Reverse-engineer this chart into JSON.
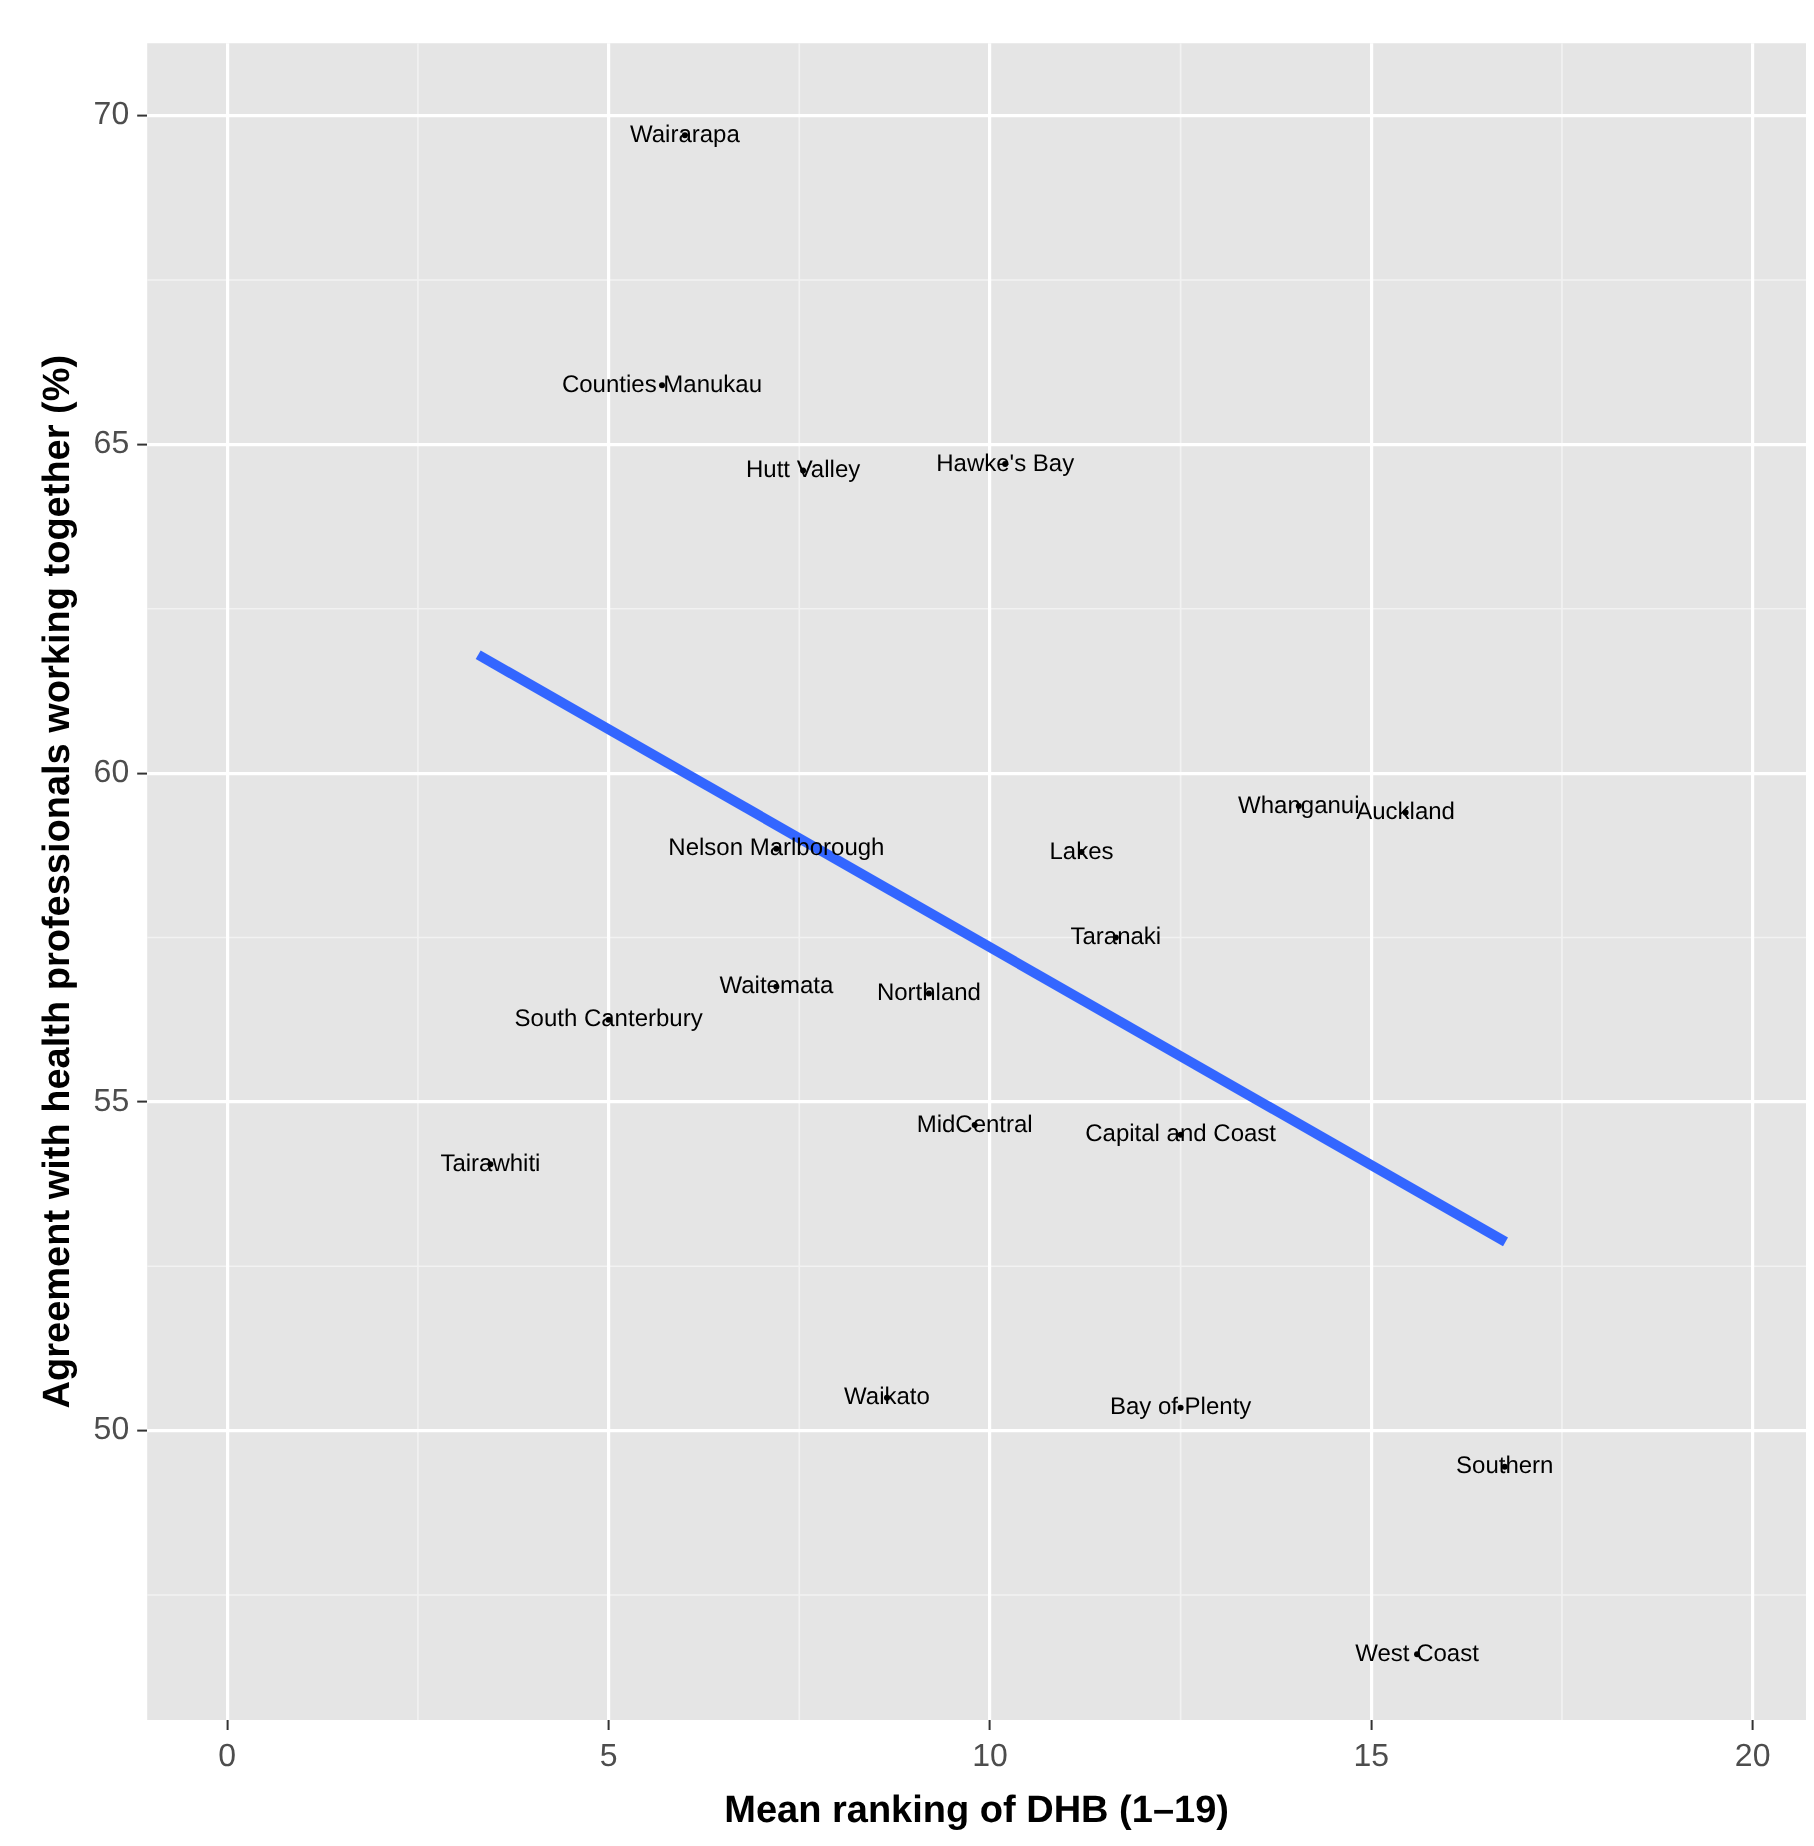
{
  "chart_data": {
    "type": "scatter",
    "xlabel": "Mean ranking of DHB (1–19)",
    "ylabel": "Agreement with health professionals working together (%)",
    "xlim": [
      -1.05,
      20.7
    ],
    "ylim": [
      45.6,
      71.1
    ],
    "xticks": [
      0,
      5,
      10,
      15,
      20
    ],
    "yticks": [
      50,
      55,
      60,
      65,
      70
    ],
    "grid": true,
    "legend": false,
    "line_style": "solid",
    "series": [
      {
        "type": "line",
        "color": "#3366ff",
        "x": [
          3.29,
          16.76
        ],
        "values": [
          61.8,
          52.87
        ]
      },
      {
        "color": "#000000",
        "x": [
          6.0,
          5.7,
          7.55,
          10.2,
          14.05,
          15.45,
          7.2,
          11.2,
          11.65,
          7.2,
          9.2,
          5.0,
          9.8,
          12.5,
          3.45,
          8.65,
          12.5,
          16.75,
          15.6
        ],
        "values": [
          69.7,
          65.9,
          64.6,
          64.7,
          59.5,
          59.4,
          58.85,
          58.8,
          57.5,
          56.75,
          56.65,
          56.25,
          54.65,
          54.5,
          54.05,
          50.5,
          50.35,
          49.45,
          46.6
        ],
        "value_labels": [
          "Wairarapa",
          "Counties Manukau",
          "Hutt Valley",
          "Hawke's Bay",
          "Whanganui",
          "Auckland",
          "Nelson Marlborough",
          "Lakes",
          "Taranaki",
          "Waitemata",
          "Northland",
          "South Canterbury",
          "MidCentral",
          "Capital and Coast",
          "Tairawhiti",
          "Waikato",
          "Bay of Plenty",
          "Southern",
          "West Coast"
        ]
      }
    ]
  }
}
